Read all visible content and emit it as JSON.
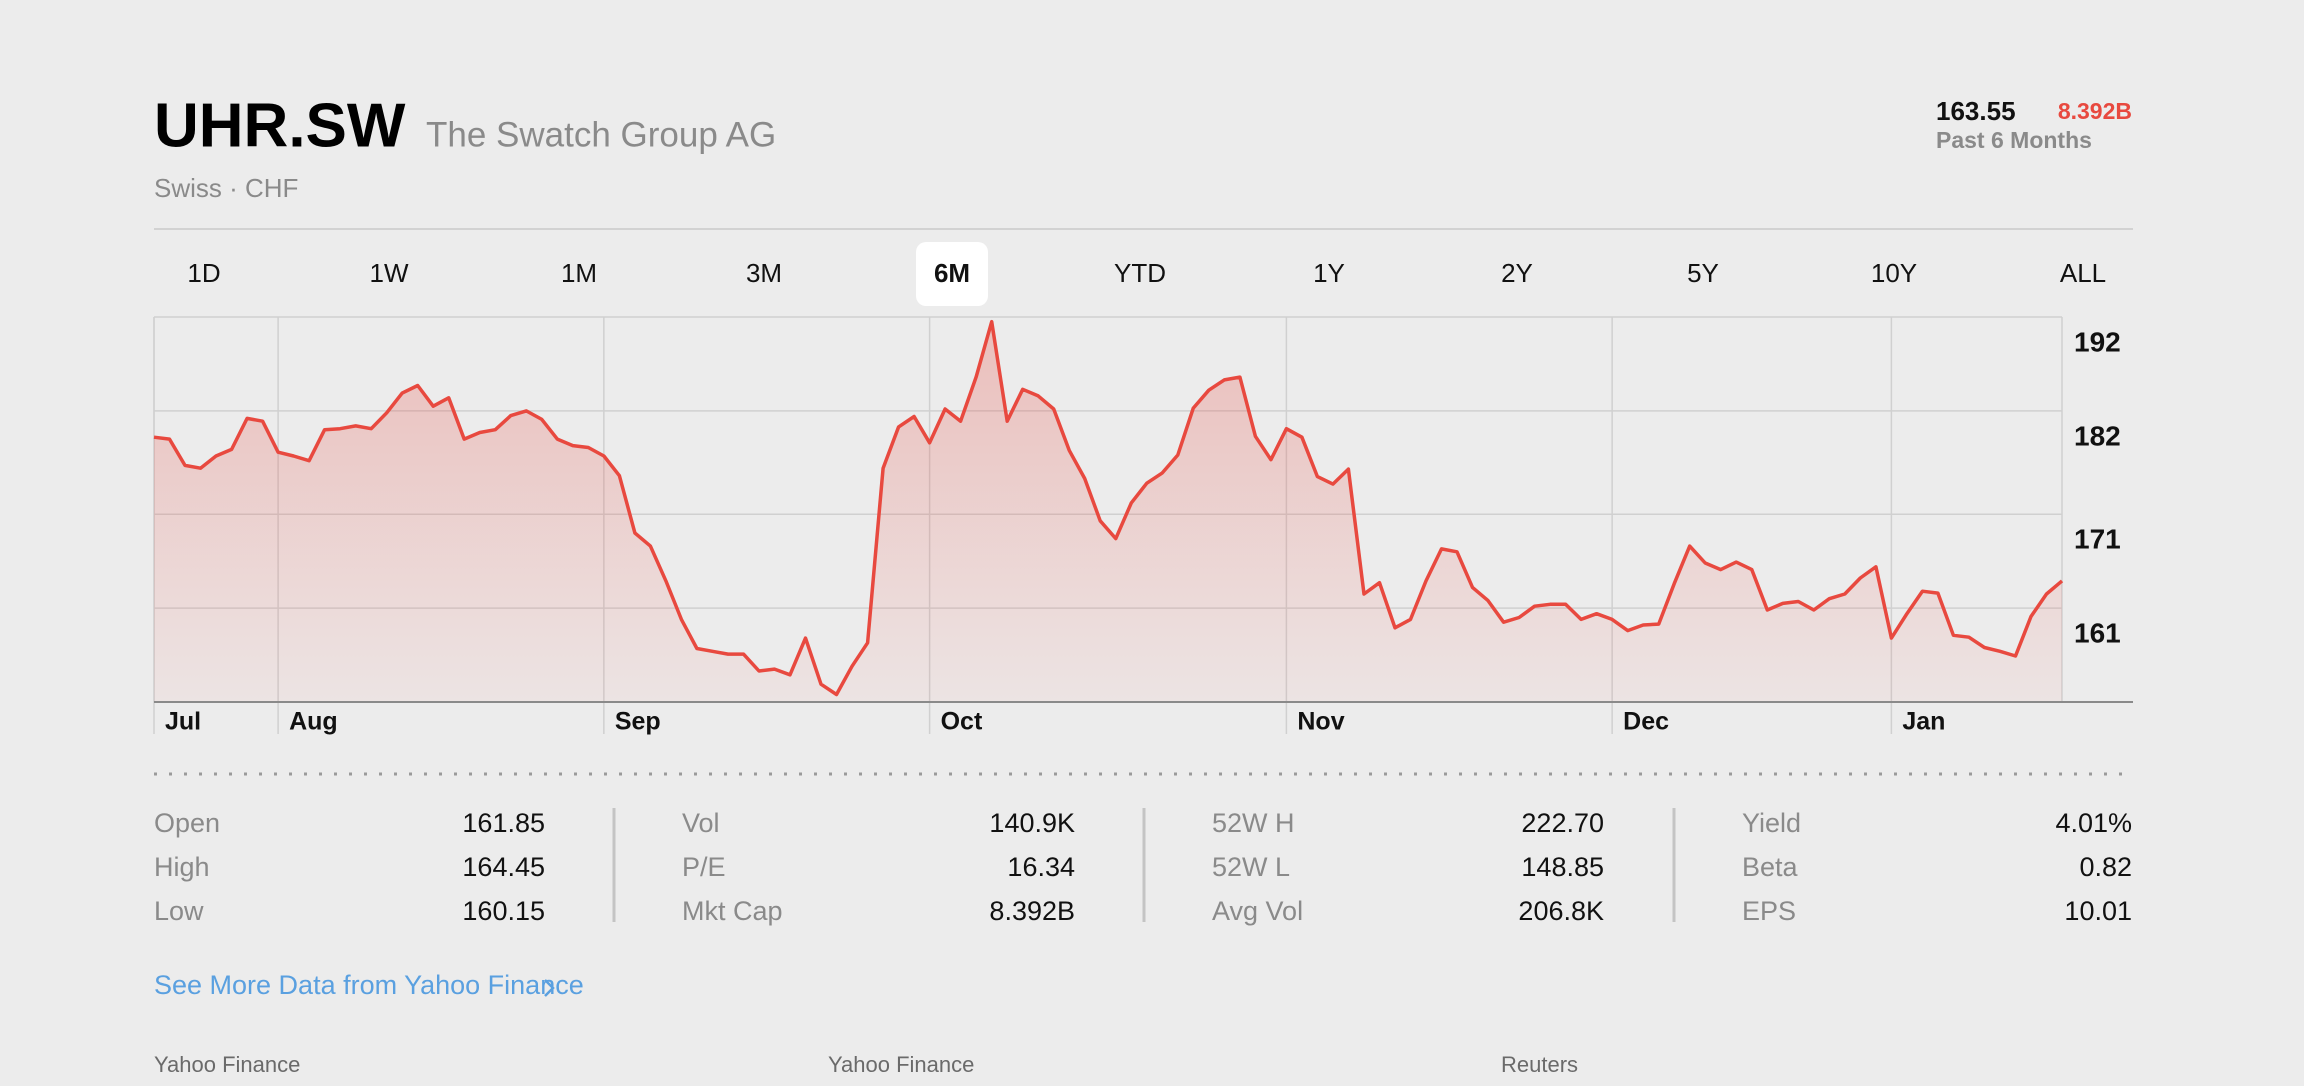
{
  "header": {
    "symbol": "UHR.SW",
    "name": "The Swatch Group AG",
    "exchange": "Swiss · CHF",
    "price": "163.55",
    "market_cap": "8.392B",
    "period": "Past 6 Months"
  },
  "ranges": [
    "1D",
    "1W",
    "1M",
    "3M",
    "6M",
    "YTD",
    "1Y",
    "2Y",
    "5Y",
    "10Y",
    "ALL"
  ],
  "selected_range": 4,
  "chart_data": {
    "type": "area",
    "color": "#e8493f",
    "values": [
      179.2,
      179.0,
      176.2,
      175.9,
      177.2,
      177.9,
      181.2,
      180.9,
      177.6,
      177.2,
      176.7,
      180.0,
      180.1,
      180.4,
      180.1,
      181.8,
      183.9,
      184.7,
      182.5,
      183.4,
      179.0,
      179.7,
      180.0,
      181.5,
      182.0,
      181.1,
      179.0,
      178.3,
      178.1,
      177.2,
      175.1,
      169.0,
      167.6,
      163.9,
      159.8,
      156.7,
      156.4,
      156.1,
      156.1,
      154.3,
      154.5,
      153.9,
      157.8,
      152.9,
      151.8,
      154.8,
      157.3,
      175.9,
      180.3,
      181.4,
      178.6,
      182.2,
      180.9,
      185.6,
      191.5,
      180.9,
      184.3,
      183.6,
      182.2,
      177.8,
      174.8,
      170.3,
      168.4,
      172.2,
      174.3,
      175.4,
      177.3,
      182.3,
      184.2,
      185.3,
      185.6,
      179.3,
      176.8,
      180.1,
      179.2,
      175.0,
      174.2,
      175.8,
      162.5,
      163.7,
      158.9,
      159.8,
      163.9,
      167.3,
      167.0,
      163.2,
      161.8,
      159.5,
      160.0,
      161.2,
      161.4,
      161.4,
      159.8,
      160.4,
      159.8,
      158.6,
      159.2,
      159.3,
      163.6,
      167.6,
      165.8,
      165.1,
      165.9,
      165.1,
      160.8,
      161.5,
      161.7,
      160.8,
      162.0,
      162.5,
      164.2,
      165.4,
      157.8,
      160.4,
      162.8,
      162.6,
      158.1,
      157.9,
      156.8,
      156.4,
      155.9,
      160.1,
      162.5,
      163.9
    ],
    "ylim": [
      151,
      192
    ],
    "yticks": [
      161,
      171,
      182,
      192
    ],
    "xticks": [
      {
        "value": 0,
        "label": "Jul"
      },
      {
        "value": 8,
        "label": "Aug"
      },
      {
        "value": 29,
        "label": "Sep"
      },
      {
        "value": 50,
        "label": "Oct"
      },
      {
        "value": 73,
        "label": "Nov"
      },
      {
        "value": 94,
        "label": "Dec"
      },
      {
        "value": 112,
        "label": "Jan"
      }
    ],
    "grid": true
  },
  "stats": [
    [
      [
        "Open",
        "161.85"
      ],
      [
        "High",
        "164.45"
      ],
      [
        "Low",
        "160.15"
      ]
    ],
    [
      [
        "Vol",
        "140.9K"
      ],
      [
        "P/E",
        "16.34"
      ],
      [
        "Mkt Cap",
        "8.392B"
      ]
    ],
    [
      [
        "52W H",
        "222.70"
      ],
      [
        "52W L",
        "148.85"
      ],
      [
        "Avg Vol",
        "206.8K"
      ]
    ],
    [
      [
        "Yield",
        "4.01%"
      ],
      [
        "Beta",
        "0.82"
      ],
      [
        "EPS",
        "10.01"
      ]
    ]
  ],
  "link": "See More Data from Yahoo Finance",
  "news_sources": [
    "Yahoo Finance",
    "Yahoo Finance",
    "Reuters"
  ]
}
